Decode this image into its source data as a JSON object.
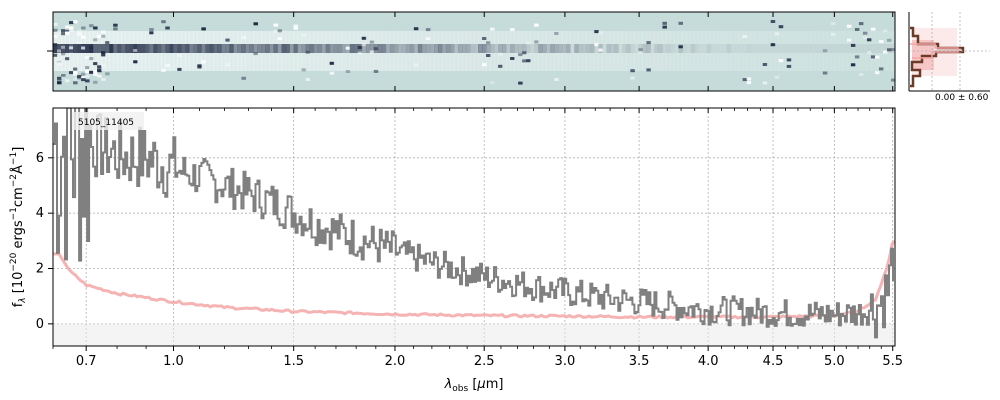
{
  "chart_data": {
    "type": "line",
    "object_label": "5105_11405",
    "xlabel": "λ_obs [μm]",
    "ylabel": "f_λ [10^-20 ergs^-1 cm^-2 Å^-1]",
    "xlim": [
      0.6,
      5.52
    ],
    "ylim": [
      -0.8,
      7.8
    ],
    "x_scale": "sqrt",
    "x_ticks": [
      0.7,
      1.0,
      1.5,
      2.0,
      2.5,
      3.0,
      3.5,
      4.0,
      4.5,
      5.0,
      5.5
    ],
    "x_tick_labels": [
      "0.7",
      "1.0",
      "1.5",
      "2.0",
      "2.5",
      "3.0",
      "3.5",
      "4.0",
      "4.5",
      "5.0",
      "5.5"
    ],
    "y_ticks": [
      0,
      2,
      4,
      6
    ],
    "y_tick_labels": [
      "0",
      "2",
      "4",
      "6"
    ],
    "grid": true,
    "series": [
      {
        "role": "spectrum",
        "color": "#808080",
        "x": [
          0.62,
          0.65,
          0.7,
          0.8,
          0.9,
          1.0,
          1.1,
          1.2,
          1.3,
          1.4,
          1.5,
          1.6,
          1.8,
          2.0,
          2.2,
          2.5,
          2.8,
          3.0,
          3.3,
          3.5,
          3.8,
          4.0,
          4.3,
          4.5,
          4.8,
          5.0,
          5.2,
          5.35,
          5.45,
          5.5
        ],
        "y": [
          6.6,
          6.9,
          6.6,
          6.1,
          6.0,
          5.6,
          5.3,
          5.0,
          4.7,
          4.4,
          4.0,
          3.6,
          3.1,
          2.6,
          2.2,
          1.7,
          1.35,
          1.15,
          0.9,
          0.8,
          0.6,
          0.5,
          0.45,
          0.4,
          0.35,
          0.35,
          0.4,
          0.6,
          1.2,
          2.5
        ]
      },
      {
        "role": "model",
        "color": "#f4a6a6",
        "x": [
          0.62,
          0.65,
          0.68,
          0.7,
          0.75,
          0.8,
          0.9,
          1.0,
          1.2,
          1.5,
          2.0,
          2.5,
          3.0,
          3.5,
          4.0,
          4.5,
          5.0,
          5.2,
          5.35,
          5.45,
          5.5
        ],
        "y": [
          2.5,
          1.9,
          1.6,
          1.4,
          1.25,
          1.1,
          0.95,
          0.8,
          0.6,
          0.45,
          0.35,
          0.3,
          0.28,
          0.25,
          0.25,
          0.25,
          0.3,
          0.45,
          0.9,
          2.0,
          3.0
        ]
      }
    ],
    "inset": {
      "label": "0.00 ± 0.60",
      "profile_color": "#6b3b2a",
      "band_color": "#f4a6a6"
    }
  },
  "colors": {
    "image_bg": "#c5dcda",
    "trace_dark": "#1f2a44",
    "spectrum": "#808080",
    "model": "#f4a6a6"
  }
}
